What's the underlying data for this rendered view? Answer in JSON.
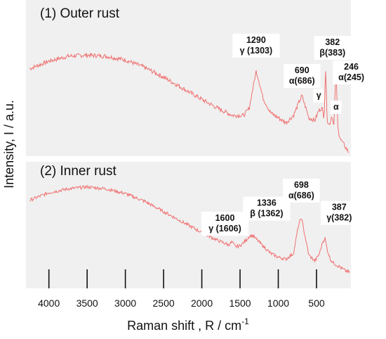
{
  "chart_data": {
    "type": "line",
    "title": "",
    "xlabel": "Raman shift , R / cm",
    "xlabel_sup": "-1",
    "ylabel": "Intensity, I / a.u.",
    "xlim": [
      4300,
      50
    ],
    "x_reversed": true,
    "xticks": [
      4000,
      3500,
      3000,
      2500,
      2000,
      1500,
      1000,
      500
    ],
    "y_tick_labels": false,
    "line_color": "#f07070",
    "background_color": "#f0f0f0",
    "series": [
      {
        "name": "(1) Outer rust",
        "x": [
          4250,
          4000,
          3750,
          3500,
          3250,
          3000,
          2750,
          2500,
          2250,
          2000,
          1800,
          1600,
          1450,
          1380,
          1320,
          1290,
          1260,
          1200,
          1100,
          1000,
          900,
          800,
          720,
          690,
          660,
          600,
          520,
          470,
          430,
          400,
          382,
          360,
          330,
          300,
          270,
          246,
          220,
          180,
          120,
          80
        ],
        "y": [
          0.7,
          0.76,
          0.8,
          0.81,
          0.8,
          0.77,
          0.71,
          0.63,
          0.54,
          0.45,
          0.38,
          0.32,
          0.32,
          0.38,
          0.58,
          0.68,
          0.62,
          0.46,
          0.34,
          0.3,
          0.26,
          0.32,
          0.44,
          0.48,
          0.42,
          0.3,
          0.28,
          0.36,
          0.38,
          0.3,
          0.72,
          0.28,
          0.24,
          0.32,
          0.24,
          0.72,
          0.2,
          0.12,
          0.06,
          0.02
        ]
      },
      {
        "name": "(2) Inner rust",
        "x": [
          4250,
          4000,
          3750,
          3500,
          3250,
          3000,
          2750,
          2500,
          2250,
          2000,
          1800,
          1650,
          1606,
          1560,
          1500,
          1420,
          1380,
          1336,
          1300,
          1200,
          1100,
          1000,
          900,
          800,
          740,
          698,
          660,
          600,
          520,
          460,
          420,
          387,
          360,
          320,
          280,
          240,
          200,
          150,
          100,
          70
        ],
        "y": [
          0.78,
          0.86,
          0.9,
          0.92,
          0.9,
          0.85,
          0.77,
          0.66,
          0.55,
          0.44,
          0.36,
          0.31,
          0.34,
          0.29,
          0.3,
          0.36,
          0.4,
          0.41,
          0.38,
          0.3,
          0.22,
          0.18,
          0.16,
          0.22,
          0.5,
          0.6,
          0.44,
          0.2,
          0.14,
          0.22,
          0.34,
          0.38,
          0.26,
          0.16,
          0.12,
          0.1,
          0.08,
          0.05,
          0.03,
          0.02
        ]
      }
    ],
    "annotations": [
      {
        "panel": 0,
        "x": 1290,
        "y": 0.68,
        "lines": [
          "1290",
          "γ (1303)"
        ],
        "dx": 0,
        "dy": -40
      },
      {
        "panel": 0,
        "x": 690,
        "y": 0.48,
        "lines": [
          "690",
          "α(686)"
        ],
        "dx": 0,
        "dy": -32
      },
      {
        "panel": 0,
        "x": 382,
        "y": 0.72,
        "lines": [
          "382",
          "β(383)"
        ],
        "dx": 10,
        "dy": -30
      },
      {
        "panel": 0,
        "x": 246,
        "y": 0.72,
        "lines": [
          "246",
          "α(245)"
        ],
        "dx": 22,
        "dy": 5
      },
      {
        "panel": 0,
        "x": 470,
        "y": 0.38,
        "lines": [
          "γ"
        ],
        "dx": 0,
        "dy": -14
      },
      {
        "panel": 0,
        "x": 300,
        "y": 0.32,
        "lines": [
          "α"
        ],
        "dx": 6,
        "dy": -8
      },
      {
        "panel": 1,
        "x": 1606,
        "y": 0.34,
        "lines": [
          "1600",
          "γ (1606)"
        ],
        "dx": -10,
        "dy": -30
      },
      {
        "panel": 1,
        "x": 1336,
        "y": 0.41,
        "lines": [
          "1336",
          "β (1362)"
        ],
        "dx": 20,
        "dy": -42
      },
      {
        "panel": 1,
        "x": 698,
        "y": 0.6,
        "lines": [
          "698",
          "α(686)"
        ],
        "dx": 0,
        "dy": -42
      },
      {
        "panel": 1,
        "x": 387,
        "y": 0.38,
        "lines": [
          "387",
          "γ(382)"
        ],
        "dx": 20,
        "dy": -40
      }
    ]
  }
}
